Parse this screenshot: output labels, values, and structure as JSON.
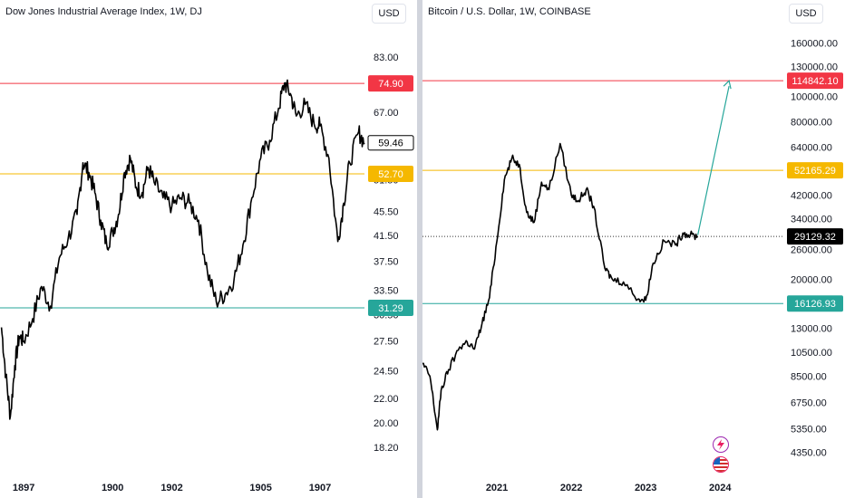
{
  "left_chart": {
    "title": "Dow Jones Industrial Average Index, 1W, DJ",
    "currency": "USD"
  },
  "right_chart": {
    "title": "Bitcoin / U.S. Dollar, 1W, COINBASE",
    "currency": "USD"
  },
  "colors": {
    "resistance": "#f23645",
    "mid": "#f5b800",
    "support": "#26a69a",
    "price_line": "#000000",
    "projection": "#26a69a",
    "axis_text": "#131722"
  },
  "chart_data": [
    {
      "type": "line",
      "title": "Dow Jones Industrial Average Index, 1W, DJ",
      "scale": "log",
      "ylim": [
        17.5,
        90
      ],
      "y_ticks": [
        "83.00",
        "67.00",
        "51.50",
        "45.50",
        "41.50",
        "37.50",
        "33.50",
        "30.50",
        "27.50",
        "24.50",
        "22.00",
        "20.00",
        "18.20"
      ],
      "x_ticks": [
        "1897",
        "1900",
        "1902",
        "1905",
        "1907"
      ],
      "x_tick_years": [
        1897,
        1900,
        1902,
        1905,
        1907
      ],
      "xlim": [
        1896.2,
        1908.5
      ],
      "horizontal_levels": [
        {
          "label": "74.90",
          "value": 74.9,
          "color": "resistance"
        },
        {
          "label": "52.70",
          "value": 52.7,
          "color": "mid"
        },
        {
          "label": "31.29",
          "value": 31.29,
          "color": "support"
        }
      ],
      "last_price": {
        "label": "59.46",
        "value": 59.46
      },
      "series": [
        {
          "x": [
            1896.25,
            1896.4,
            1896.55,
            1896.7,
            1896.85,
            1897.0,
            1897.3,
            1897.6,
            1897.9,
            1898.2,
            1898.5,
            1898.8,
            1899.0,
            1899.2,
            1899.4,
            1899.6,
            1899.8,
            1900.0,
            1900.2,
            1900.4,
            1900.6,
            1900.8,
            1901.0,
            1901.2,
            1901.4,
            1901.7,
            1902.0,
            1902.3,
            1902.6,
            1902.9,
            1903.2,
            1903.5,
            1903.8,
            1904.1,
            1904.4,
            1904.7,
            1905.0,
            1905.3,
            1905.6,
            1905.8,
            1906.0,
            1906.2,
            1906.5,
            1906.8,
            1907.0,
            1907.3,
            1907.6,
            1907.8,
            1908.0,
            1908.3,
            1908.5
          ],
          "values": [
            29.0,
            24.0,
            20.5,
            25.0,
            28.0,
            27.5,
            30.0,
            34.0,
            31.5,
            38.0,
            41.0,
            45.0,
            55.0,
            53.0,
            49.0,
            44.0,
            40.0,
            42.0,
            45.0,
            53.0,
            56.0,
            50.0,
            49.0,
            54.0,
            51.0,
            48.0,
            46.5,
            48.0,
            47.0,
            44.0,
            36.0,
            32.0,
            33.0,
            35.0,
            40.0,
            48.0,
            56.0,
            60.0,
            68.0,
            75.0,
            72.0,
            66.0,
            69.0,
            64.0,
            63.5,
            56.0,
            40.5,
            47.0,
            55.0,
            62.0,
            59.46
          ]
        }
      ]
    },
    {
      "type": "line",
      "title": "Bitcoin / U.S. Dollar, 1W, COINBASE",
      "scale": "log",
      "ylim": [
        4000,
        170000
      ],
      "y_ticks": [
        "160000.00",
        "130000.00",
        "100000.00",
        "80000.00",
        "64000.00",
        "42000.00",
        "34000.00",
        "26000.00",
        "20000.00",
        "13000.00",
        "10500.00",
        "8500.00",
        "6750.00",
        "5350.00",
        "4350.00"
      ],
      "x_ticks": [
        "2021",
        "2022",
        "2023",
        "2024"
      ],
      "x_tick_years": [
        2021,
        2022,
        2023,
        2024
      ],
      "xlim": [
        2020.0,
        2024.85
      ],
      "horizontal_levels": [
        {
          "label": "114842.10",
          "value": 114842.1,
          "color": "resistance"
        },
        {
          "label": "52165.29",
          "value": 52165.29,
          "color": "mid"
        },
        {
          "label": "16126.93",
          "value": 16126.93,
          "color": "support"
        }
      ],
      "last_price": {
        "label": "29129.32",
        "value": 29129.32
      },
      "projection": {
        "x": [
          2023.7,
          2024.12
        ],
        "values": [
          29500,
          114842.1
        ]
      },
      "series": [
        {
          "x": [
            2020.0,
            2020.1,
            2020.2,
            2020.25,
            2020.35,
            2020.5,
            2020.6,
            2020.7,
            2020.8,
            2020.9,
            2021.0,
            2021.1,
            2021.2,
            2021.3,
            2021.4,
            2021.5,
            2021.6,
            2021.7,
            2021.85,
            2022.0,
            2022.1,
            2022.2,
            2022.3,
            2022.45,
            2022.55,
            2022.7,
            2022.9,
            2023.0,
            2023.1,
            2023.25,
            2023.4,
            2023.5,
            2023.6,
            2023.7
          ],
          "values": [
            9500,
            8500,
            5300,
            7500,
            9000,
            11000,
            11500,
            10800,
            13500,
            17000,
            28000,
            48000,
            58000,
            55000,
            36000,
            33000,
            47000,
            44000,
            66000,
            42000,
            40000,
            44000,
            38000,
            22000,
            20000,
            19500,
            16800,
            16600,
            23000,
            28000,
            27000,
            30000,
            29500,
            29129.32
          ]
        }
      ]
    }
  ]
}
